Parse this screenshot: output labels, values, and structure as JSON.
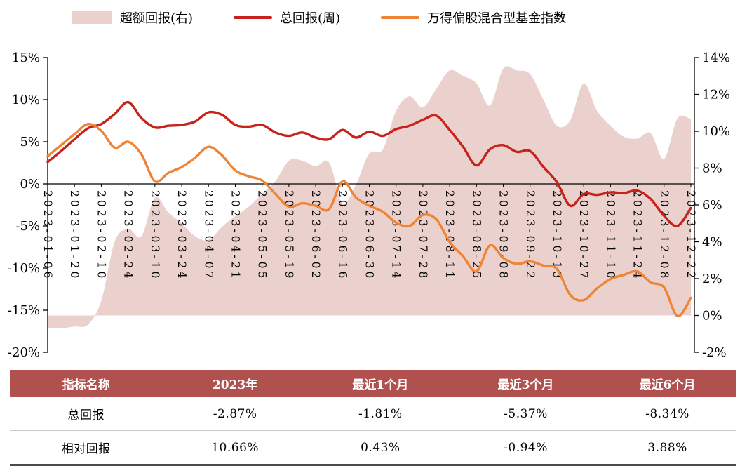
{
  "legend": {
    "items": [
      {
        "label": "超额回报(右)",
        "swatch": "area",
        "color": "#EBD1CE"
      },
      {
        "label": "总回报(周)",
        "swatch": "line",
        "color": "#C7231B"
      },
      {
        "label": "万得偏股混合型基金指数",
        "swatch": "line",
        "color": "#EE8435"
      }
    ]
  },
  "chart_data": {
    "type": "line",
    "title": "",
    "grid": false,
    "legend_position": "top",
    "x_labels": [
      "2023-01-06",
      "2023-01-20",
      "2023-02-10",
      "2023-02-24",
      "2023-03-10",
      "2023-03-24",
      "2023-04-07",
      "2023-04-21",
      "2023-05-05",
      "2023-05-19",
      "2023-06-02",
      "2023-06-16",
      "2023-06-30",
      "2023-07-14",
      "2023-07-28",
      "2023-08-11",
      "2023-08-25",
      "2023-09-08",
      "2023-09-22",
      "2023-10-13",
      "2023-10-27",
      "2023-11-10",
      "2023-11-24",
      "2023-12-08",
      "2023-12-22"
    ],
    "left_axis": {
      "min": -20,
      "max": 15,
      "tick_values": [
        15,
        10,
        5,
        0,
        -5,
        -10,
        -15,
        -20
      ],
      "tick_labels": [
        "15%",
        "10%",
        "5%",
        "0%",
        "-5%",
        "-10%",
        "-15%",
        "-20%"
      ]
    },
    "right_axis": {
      "min": -2,
      "max": 14,
      "tick_values": [
        14,
        12,
        10,
        8,
        6,
        4,
        2,
        0,
        -2
      ],
      "tick_labels": [
        "14%",
        "12%",
        "10%",
        "8%",
        "6%",
        "4%",
        "2%",
        "0%",
        "-2%"
      ]
    },
    "series": [
      {
        "name": "超额回报(右)",
        "axis": "right",
        "type": "area",
        "color": "#EBD1CE",
        "values": [
          -0.7,
          -0.7,
          -0.6,
          -0.5,
          0.8,
          4.0,
          4.7,
          4.3,
          6.4,
          5.6,
          5.0,
          4.3,
          4.1,
          4.8,
          5.4,
          5.9,
          6.6,
          7.3,
          8.4,
          8.4,
          8.1,
          8.3,
          6.1,
          7.1,
          8.8,
          9.0,
          11.1,
          11.9,
          11.3,
          12.3,
          13.3,
          13.0,
          12.6,
          11.4,
          13.4,
          13.3,
          13.1,
          11.7,
          10.3,
          10.6,
          12.6,
          11.1,
          10.3,
          9.7,
          9.6,
          9.9,
          8.5,
          10.7,
          10.66
        ]
      },
      {
        "name": "总回报(周)",
        "axis": "left",
        "type": "line",
        "color": "#C7231B",
        "values": [
          2.6,
          3.9,
          5.3,
          6.6,
          7.1,
          8.3,
          9.7,
          7.8,
          6.7,
          6.9,
          7.0,
          7.4,
          8.5,
          8.2,
          7.0,
          6.8,
          7.0,
          6.1,
          5.7,
          6.1,
          5.5,
          5.3,
          6.4,
          5.5,
          6.2,
          5.7,
          6.5,
          6.9,
          7.6,
          8.1,
          6.4,
          4.4,
          2.2,
          4.1,
          4.6,
          3.8,
          3.9,
          2.0,
          0.2,
          -2.6,
          -1.2,
          -1.3,
          -1.0,
          -1.1,
          -0.8,
          -1.8,
          -3.8,
          -5.0,
          -2.87
        ]
      },
      {
        "name": "万得偏股混合型基金指数",
        "axis": "left",
        "type": "line",
        "color": "#EE8435",
        "values": [
          3.3,
          4.6,
          5.9,
          7.1,
          6.3,
          4.3,
          5.0,
          3.5,
          0.3,
          1.3,
          2.0,
          3.1,
          4.4,
          3.4,
          1.6,
          0.9,
          0.4,
          -1.2,
          -2.7,
          -2.3,
          -2.6,
          -3.0,
          0.3,
          -1.6,
          -2.6,
          -3.3,
          -4.6,
          -5.0,
          -3.7,
          -4.2,
          -6.9,
          -8.6,
          -10.4,
          -7.3,
          -8.8,
          -9.5,
          -9.2,
          -9.7,
          -10.1,
          -13.2,
          -13.8,
          -12.4,
          -11.3,
          -10.8,
          -10.4,
          -11.7,
          -12.3,
          -15.7,
          -13.53
        ]
      }
    ]
  },
  "table": {
    "header_bg": "#B0514F",
    "headers": [
      "指标名称",
      "2023年",
      "最近1个月",
      "最近3个月",
      "最近6个月"
    ],
    "rows": [
      {
        "cells": [
          "总回报",
          "-2.87%",
          "-1.81%",
          "-5.37%",
          "-8.34%"
        ]
      },
      {
        "cells": [
          "相对回报",
          "10.66%",
          "0.43%",
          "-0.94%",
          "3.88%"
        ]
      }
    ]
  }
}
